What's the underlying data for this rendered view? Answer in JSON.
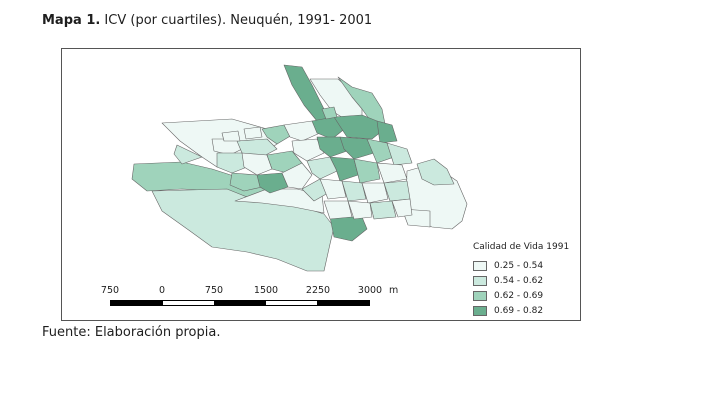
{
  "caption": {
    "label": "Mapa 1.",
    "text": " ICV (por cuartiles). Neuquén, 1991- 2001"
  },
  "legend": {
    "title": "Calidad de Vida 1991",
    "items": [
      {
        "label": "0.25 - 0.54",
        "color": "#eef8f5"
      },
      {
        "label": "0.54 - 0.62",
        "color": "#cbe9de"
      },
      {
        "label": "0.62 - 0.69",
        "color": "#9fd3bb"
      },
      {
        "label": "0.69 - 0.82",
        "color": "#6aae8e"
      }
    ]
  },
  "scale": {
    "ticks": [
      "750",
      "0",
      "750",
      "1500",
      "2250",
      "3000"
    ],
    "unit": "m"
  },
  "source": "Fuente: Elaboración propia."
}
